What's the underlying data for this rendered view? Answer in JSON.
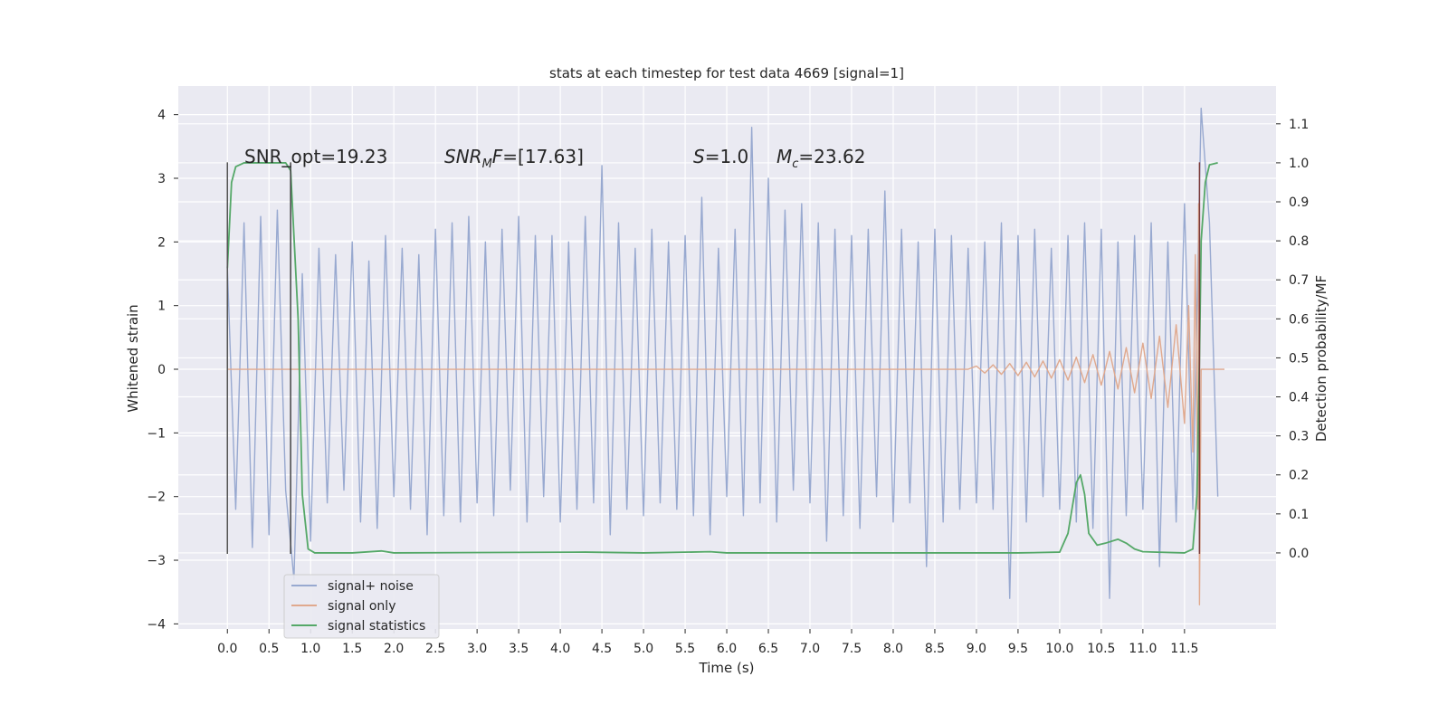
{
  "chart_data": {
    "type": "line",
    "title": "stats at each timestep for test data 4669 [signal=1]",
    "xlabel": "Time (s)",
    "ylabel": "Whitened strain",
    "y2label": "Detection probability/MF",
    "xlim": [
      -0.59,
      12.6
    ],
    "ylim": [
      -4.08,
      4.45
    ],
    "y2lim": [
      -0.195,
      1.197
    ],
    "grid": true,
    "background": "#eaeaf2",
    "xticks": [
      {
        "value": 0,
        "label": "0.0"
      },
      0.5,
      {
        "value": 1,
        "label": "1.0"
      },
      1.5,
      {
        "value": 2,
        "label": "2.0"
      },
      2.5,
      {
        "value": 3,
        "label": "3.0"
      },
      3.5,
      {
        "value": 4,
        "label": "4.0"
      },
      4.5,
      {
        "value": 5,
        "label": "5.0"
      },
      5.5,
      {
        "value": 6,
        "label": "6.0"
      },
      6.5,
      {
        "value": 7,
        "label": "7.0"
      },
      7.5,
      {
        "value": 8,
        "label": "8.0"
      },
      8.5,
      {
        "value": 9,
        "label": "9.0"
      },
      9.5,
      {
        "value": 10,
        "label": "10.0"
      },
      10.5,
      {
        "value": 11,
        "label": "11.0"
      },
      11.5
    ],
    "yticks": [
      {
        "value": -4,
        "label": "−4"
      },
      {
        "value": -3,
        "label": "−3"
      },
      {
        "value": -2,
        "label": "−2"
      },
      {
        "value": -1,
        "label": "−1"
      },
      0,
      1,
      2,
      3,
      4
    ],
    "y2ticks": [
      {
        "value": 0,
        "label": "0.0"
      },
      0.1,
      0.2,
      0.3,
      0.4,
      0.5,
      0.6,
      0.7,
      0.8,
      0.9,
      {
        "value": 1,
        "label": "1.0"
      },
      1.1
    ],
    "legend": "lower left",
    "series": [
      {
        "name": "signal+ noise",
        "color": "#98a9d0",
        "x": [
          0.0,
          0.1,
          0.2,
          0.3,
          0.4,
          0.5,
          0.6,
          0.7,
          0.8,
          0.9,
          1.0,
          1.1,
          1.2,
          1.3,
          1.4,
          1.5,
          1.6,
          1.7,
          1.8,
          1.9,
          2.0,
          2.1,
          2.2,
          2.3,
          2.4,
          2.5,
          2.6,
          2.7,
          2.8,
          2.9,
          3.0,
          3.1,
          3.2,
          3.3,
          3.4,
          3.5,
          3.6,
          3.7,
          3.8,
          3.9,
          4.0,
          4.1,
          4.2,
          4.3,
          4.4,
          4.5,
          4.6,
          4.7,
          4.8,
          4.9,
          5.0,
          5.1,
          5.2,
          5.3,
          5.4,
          5.5,
          5.6,
          5.7,
          5.8,
          5.9,
          6.0,
          6.1,
          6.2,
          6.3,
          6.4,
          6.5,
          6.6,
          6.7,
          6.8,
          6.9,
          7.0,
          7.1,
          7.2,
          7.3,
          7.4,
          7.5,
          7.6,
          7.7,
          7.8,
          7.9,
          8.0,
          8.1,
          8.2,
          8.3,
          8.4,
          8.5,
          8.6,
          8.7,
          8.8,
          8.9,
          9.0,
          9.1,
          9.2,
          9.3,
          9.4,
          9.5,
          9.6,
          9.7,
          9.8,
          9.9,
          10.0,
          10.1,
          10.2,
          10.3,
          10.4,
          10.5,
          10.6,
          10.7,
          10.8,
          10.9,
          11.0,
          11.1,
          11.2,
          11.3,
          11.4,
          11.5,
          11.6,
          11.7,
          11.8,
          11.9
        ],
        "values": [
          1.6,
          -2.2,
          2.3,
          -2.8,
          2.4,
          -2.6,
          2.5,
          -1.9,
          -3.3,
          1.5,
          -2.7,
          1.9,
          -2.1,
          1.8,
          -1.9,
          2.0,
          -2.4,
          1.7,
          -2.5,
          2.1,
          -2.0,
          1.9,
          -2.2,
          1.8,
          -2.6,
          2.2,
          -2.3,
          2.3,
          -2.4,
          2.4,
          -2.1,
          2.0,
          -2.3,
          2.2,
          -1.9,
          2.4,
          -2.4,
          2.1,
          -2.0,
          2.1,
          -2.4,
          2.0,
          -2.2,
          2.4,
          -2.1,
          3.2,
          -2.6,
          2.3,
          -2.2,
          1.9,
          -2.3,
          2.2,
          -2.1,
          2.0,
          -2.2,
          2.1,
          -2.3,
          2.7,
          -2.6,
          1.9,
          -2.0,
          2.2,
          -2.3,
          3.8,
          -2.1,
          3.0,
          -2.4,
          2.5,
          -1.9,
          2.6,
          -2.1,
          2.3,
          -2.7,
          2.2,
          -2.3,
          2.1,
          -2.5,
          2.2,
          -2.0,
          2.8,
          -2.4,
          2.2,
          -2.1,
          2.0,
          -3.1,
          2.2,
          -2.4,
          2.1,
          -2.2,
          1.9,
          -2.1,
          2.0,
          -2.2,
          2.3,
          -3.6,
          2.1,
          -2.4,
          2.2,
          -2.0,
          1.9,
          -2.2,
          2.1,
          -2.4,
          2.3,
          -2.5,
          2.2,
          -3.6,
          2.0,
          -2.3,
          2.1,
          -2.2,
          2.3,
          -3.1,
          2.0,
          -2.4,
          2.6,
          -2.2,
          4.1,
          2.3,
          -2.0
        ]
      },
      {
        "name": "signal only",
        "color": "#e0a98e",
        "x": [
          0,
          8.9,
          9.0,
          9.1,
          9.2,
          9.3,
          9.4,
          9.5,
          9.6,
          9.7,
          9.8,
          9.9,
          10.0,
          10.1,
          10.2,
          10.3,
          10.4,
          10.5,
          10.6,
          10.7,
          10.8,
          10.9,
          11.0,
          11.1,
          11.2,
          11.3,
          11.4,
          11.5,
          11.55,
          11.6,
          11.63,
          11.66,
          11.67,
          11.68,
          11.7,
          11.98
        ],
        "values": [
          0,
          0,
          0.05,
          -0.06,
          0.07,
          -0.08,
          0.09,
          -0.1,
          0.11,
          -0.12,
          0.13,
          -0.14,
          0.15,
          -0.17,
          0.19,
          -0.21,
          0.23,
          -0.25,
          0.28,
          -0.31,
          0.34,
          -0.37,
          0.41,
          -0.46,
          0.52,
          -0.6,
          0.7,
          -0.85,
          1.0,
          -1.3,
          1.8,
          -2.2,
          2.6,
          -3.7,
          0,
          0
        ]
      },
      {
        "name": "signal statistics",
        "color": "#55a868",
        "axis": "y2",
        "x": [
          0,
          0.05,
          0.1,
          0.2,
          0.7,
          0.76,
          0.85,
          0.9,
          0.97,
          1.05,
          1.5,
          1.85,
          2.0,
          4.3,
          5.0,
          5.8,
          6.0,
          9.5,
          10.0,
          10.1,
          10.2,
          10.25,
          10.3,
          10.35,
          10.45,
          10.55,
          10.7,
          10.8,
          10.9,
          11.0,
          11.5,
          11.6,
          11.65,
          11.68,
          11.7,
          11.75,
          11.8,
          11.9
        ],
        "values": [
          0.73,
          0.95,
          0.99,
          1.0,
          1.0,
          0.98,
          0.6,
          0.15,
          0.01,
          0,
          0,
          0.005,
          0,
          0.002,
          0,
          0.003,
          0,
          0,
          0.002,
          0.05,
          0.18,
          0.2,
          0.15,
          0.05,
          0.02,
          0.025,
          0.035,
          0.025,
          0.01,
          0.003,
          0,
          0.01,
          0.15,
          0.5,
          0.8,
          0.95,
          0.995,
          1.0
        ]
      }
    ],
    "markers": {
      "x": [
        0,
        0.76,
        11.68
      ],
      "ymin": -2.9,
      "ymax": 3.25,
      "colors": [
        "#555555",
        "#444444",
        "#7a3b3b"
      ]
    },
    "annotations": [
      {
        "parts": [
          "SNR_opt=19.23"
        ]
      },
      {
        "parts": [
          {
            "italic": "SNR"
          },
          {
            "sub": "M"
          },
          {
            "italic": "F"
          },
          "=[17.63]"
        ]
      },
      {
        "parts": [
          {
            "italic": "S"
          },
          "=1.0"
        ]
      },
      {
        "parts": [
          {
            "italic": "M"
          },
          {
            "sub": "c"
          },
          "=23.62"
        ]
      }
    ]
  }
}
